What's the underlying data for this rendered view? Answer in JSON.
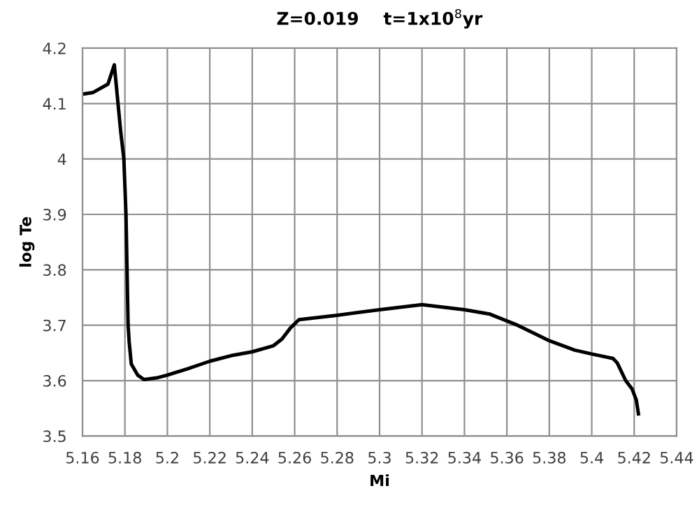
{
  "chart_data": {
    "type": "line",
    "title": "Z=0.019    t=1x10$^{8}$yr",
    "xlabel": "Mi",
    "ylabel": "log Te",
    "x": [
      5.16,
      5.165,
      5.172,
      5.175,
      5.178,
      5.1795,
      5.1805,
      5.181,
      5.1815,
      5.182,
      5.183,
      5.186,
      5.189,
      5.195,
      5.2,
      5.21,
      5.22,
      5.23,
      5.24,
      5.25,
      5.254,
      5.258,
      5.262,
      5.28,
      5.3,
      5.32,
      5.34,
      5.352,
      5.365,
      5.38,
      5.392,
      5.4,
      5.41,
      5.412,
      5.416,
      5.419,
      5.421,
      5.422
    ],
    "series": [
      {
        "color": "#000000",
        "values": [
          4.117,
          4.12,
          4.135,
          4.17,
          4.05,
          4.0,
          3.9,
          3.8,
          3.7,
          3.67,
          3.63,
          3.61,
          3.602,
          3.605,
          3.61,
          3.622,
          3.635,
          3.645,
          3.652,
          3.663,
          3.675,
          3.695,
          3.71,
          3.718,
          3.728,
          3.737,
          3.728,
          3.72,
          3.7,
          3.672,
          3.655,
          3.648,
          3.64,
          3.632,
          3.6,
          3.585,
          3.565,
          3.54
        ]
      }
    ],
    "xlim": [
      5.16,
      5.44
    ],
    "ylim": [
      3.5,
      4.2
    ],
    "xticks": [
      5.16,
      5.18,
      5.2,
      5.22,
      5.24,
      5.26,
      5.28,
      5.3,
      5.32,
      5.34,
      5.36,
      5.38,
      5.4,
      5.42,
      5.44
    ],
    "yticks": [
      3.5,
      3.6,
      3.7,
      3.8,
      3.9,
      4,
      4.1,
      4.2
    ],
    "grid": true,
    "marker": "none",
    "line_style": "solid"
  }
}
